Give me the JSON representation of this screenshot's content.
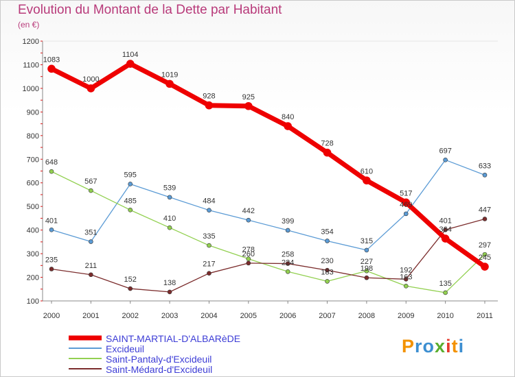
{
  "chart_data": {
    "type": "line",
    "title": "Evolution du Montant de la Dette par Habitant",
    "subtitle": "(en €)",
    "x": [
      "2000",
      "2001",
      "2002",
      "2003",
      "2004",
      "2005",
      "2006",
      "2007",
      "2008",
      "2009",
      "2010",
      "2011"
    ],
    "ylim": [
      100,
      1200
    ],
    "yticks": [
      100,
      200,
      300,
      400,
      500,
      600,
      700,
      800,
      900,
      1000,
      1100,
      1200
    ],
    "grid": false,
    "legend": "bottom-left",
    "series": [
      {
        "name": "SAINT-MARTIAL-D'ALBARèDE",
        "color": "#ee0000",
        "emphasis": true,
        "values": [
          1083,
          1000,
          1104,
          1019,
          928,
          925,
          840,
          728,
          610,
          517,
          364,
          245
        ]
      },
      {
        "name": "Excideuil",
        "color": "#5b9bd5",
        "values": [
          401,
          351,
          595,
          539,
          484,
          442,
          399,
          354,
          315,
          469,
          697,
          633
        ]
      },
      {
        "name": "Saint-Pantaly-d'Excideuil",
        "color": "#92d050",
        "values": [
          648,
          567,
          485,
          410,
          335,
          278,
          224,
          183,
          227,
          163,
          135,
          297
        ]
      },
      {
        "name": "Saint-Médard-d'Excideuil",
        "color": "#7b2c2c",
        "values": [
          235,
          211,
          152,
          138,
          217,
          260,
          258,
          230,
          198,
          192,
          401,
          447
        ]
      }
    ]
  },
  "logo": {
    "text": "Proxiti",
    "icon": "proxiti-logo"
  }
}
